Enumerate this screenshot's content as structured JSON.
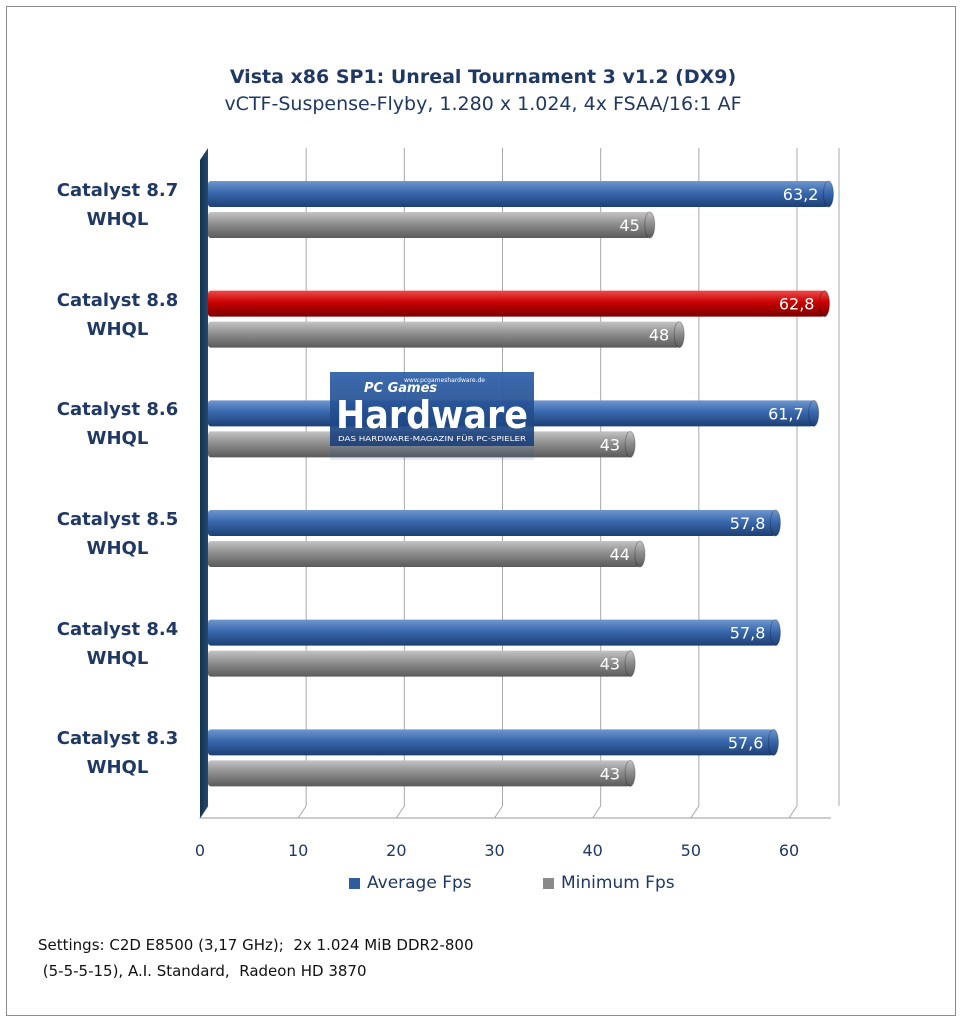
{
  "chart_data": {
    "type": "bar",
    "orientation": "horizontal",
    "title": "Vista x86  SP1: Unreal Tournament 3 v1.2 (DX9)",
    "subtitle": "vCTF-Suspense-Flyby, 1.280 x 1.024,  4x FSAA/16:1 AF",
    "categories": [
      [
        "Catalyst 8.7",
        "WHQL"
      ],
      [
        "Catalyst 8.8",
        "WHQL"
      ],
      [
        "Catalyst 8.6",
        "WHQL"
      ],
      [
        "Catalyst 8.5",
        "WHQL"
      ],
      [
        "Catalyst 8.4",
        "WHQL"
      ],
      [
        "Catalyst 8.3",
        "WHQL"
      ]
    ],
    "series": [
      {
        "name": "Average Fps",
        "color": "#2e5c9e",
        "values": [
          63.2,
          62.8,
          61.7,
          57.8,
          57.8,
          57.6
        ],
        "labels": [
          "63,2",
          "62,8",
          "61,7",
          "57,8",
          "57,8",
          "57,6"
        ]
      },
      {
        "name": "Minimum Fps",
        "color": "#8a8a8a",
        "values": [
          45,
          48,
          43,
          44,
          43,
          43
        ],
        "labels": [
          "45",
          "48",
          "43",
          "44",
          "43",
          "43"
        ]
      }
    ],
    "highlight": {
      "category_index": 1,
      "series_index": 0,
      "color": "#c00000"
    },
    "xlim": [
      0,
      65
    ],
    "xticks": [
      "0",
      "10",
      "20",
      "30",
      "40",
      "50",
      "60"
    ],
    "grid": true,
    "legend": "bottom"
  },
  "footer": {
    "line1": "Settings: C2D E8500 (3,17 GHz);  2x 1.024 MiB DDR2-800",
    "line2": " (5-5-5-15), A.I. Standard,  Radeon HD 3870"
  },
  "watermark": {
    "url": "www.pcgameshardware.de",
    "brand_top": "PC Games",
    "brand": "Hardware",
    "tagline": "DAS HARDWARE-MAGAZIN FÜR PC-SPIELER"
  }
}
